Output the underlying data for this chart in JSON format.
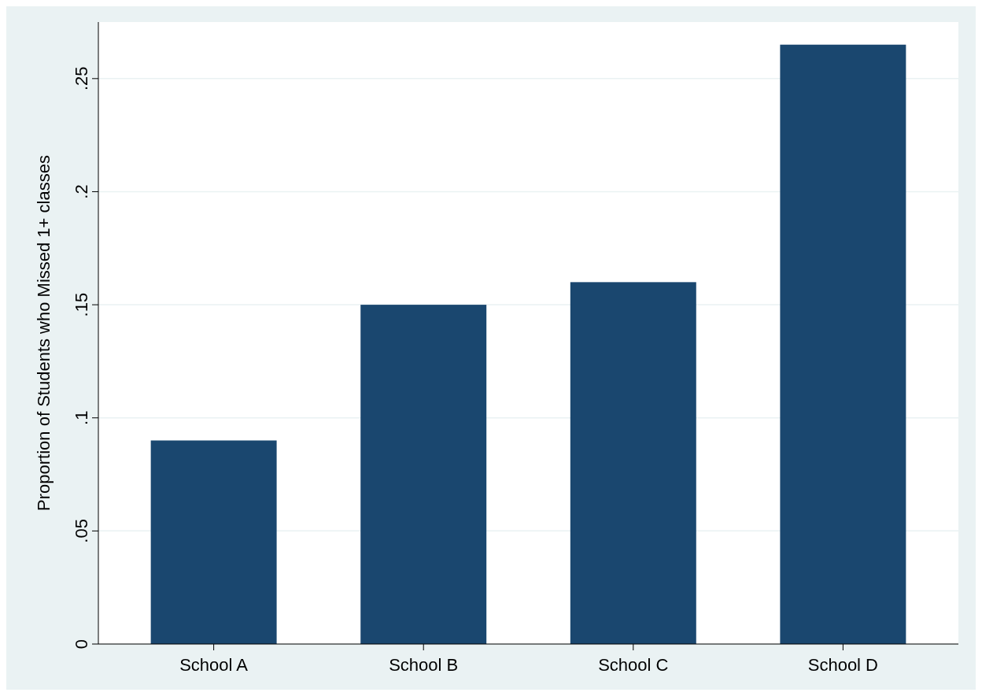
{
  "chart_data": {
    "type": "bar",
    "ylabel": "Proportion of Students who Missed 1+ classes",
    "categories": [
      "School A",
      "School B",
      "School C",
      "School D"
    ],
    "values": [
      0.09,
      0.15,
      0.16,
      0.265
    ],
    "color": "#1a476f",
    "ylim": [
      0,
      0.275
    ],
    "yticks": [
      0,
      {
        "value": 0.05,
        "label": ".05"
      },
      {
        "value": 0.1,
        "label": ".1"
      },
      {
        "value": 0.15,
        "label": ".15"
      },
      {
        "value": 0.2,
        "label": ".2"
      },
      {
        "value": 0.25,
        "label": ".25"
      }
    ],
    "grid": "y"
  }
}
